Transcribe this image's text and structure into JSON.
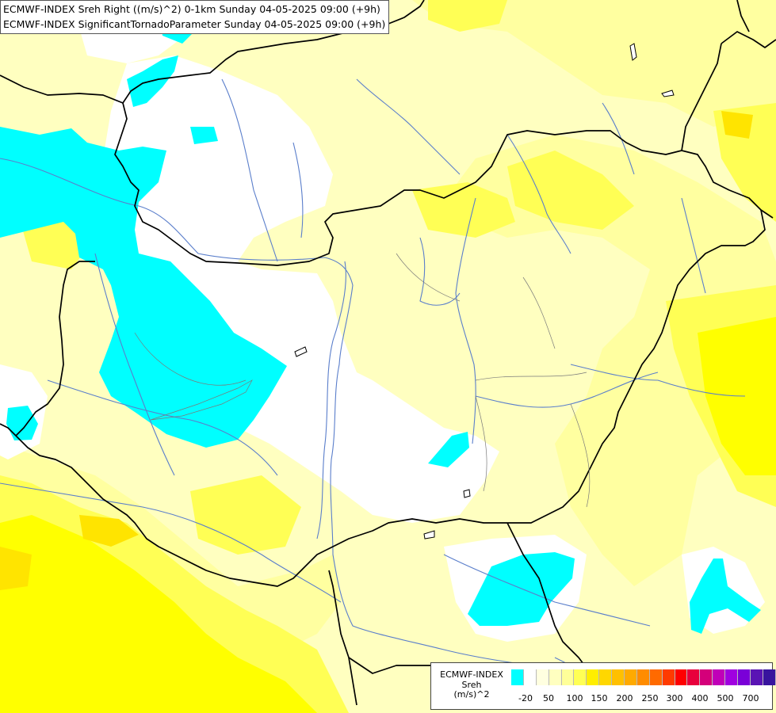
{
  "title": {
    "line1": "ECMWF-INDEX Sreh Right ((m/s)^2) 0-1km Sunday 04-05-2025 09:00 (+9h)",
    "line2": "ECMWF-INDEX SignificantTornadoParameter Sunday 04-05-2025 09:00 (+9h)"
  },
  "legend": {
    "name_line1": "ECMWF-INDEX",
    "name_line2": "Sreh",
    "name_line3": "(m/s)^2",
    "swatch_colors": [
      "#00ffff",
      "#ffffff",
      "#ffffe0",
      "#ffffc0",
      "#ffff99",
      "#ffff55",
      "#ffee00",
      "#ffd700",
      "#ffc000",
      "#ffaa00",
      "#ff8c00",
      "#ff6a00",
      "#ff3a00",
      "#ff0000",
      "#e8003c",
      "#d4007a",
      "#c000b8",
      "#a000e0",
      "#7a00d8",
      "#5a14b4",
      "#38149e",
      "#0a0a78"
    ],
    "tick_labels": [
      "-20",
      "50",
      "100",
      "150",
      "200",
      "250",
      "300",
      "400",
      "500",
      "700"
    ]
  },
  "colors": {
    "sea_level_background": "#ffffc0",
    "light_yellow": "#ffffa0",
    "yellow": "#ffff55",
    "strong_yellow": "#ffff00",
    "gold": "#ffe400",
    "white": "#ffffff",
    "cyan": "#00ffff",
    "border": "#000000",
    "river": "#5a7ecb"
  }
}
